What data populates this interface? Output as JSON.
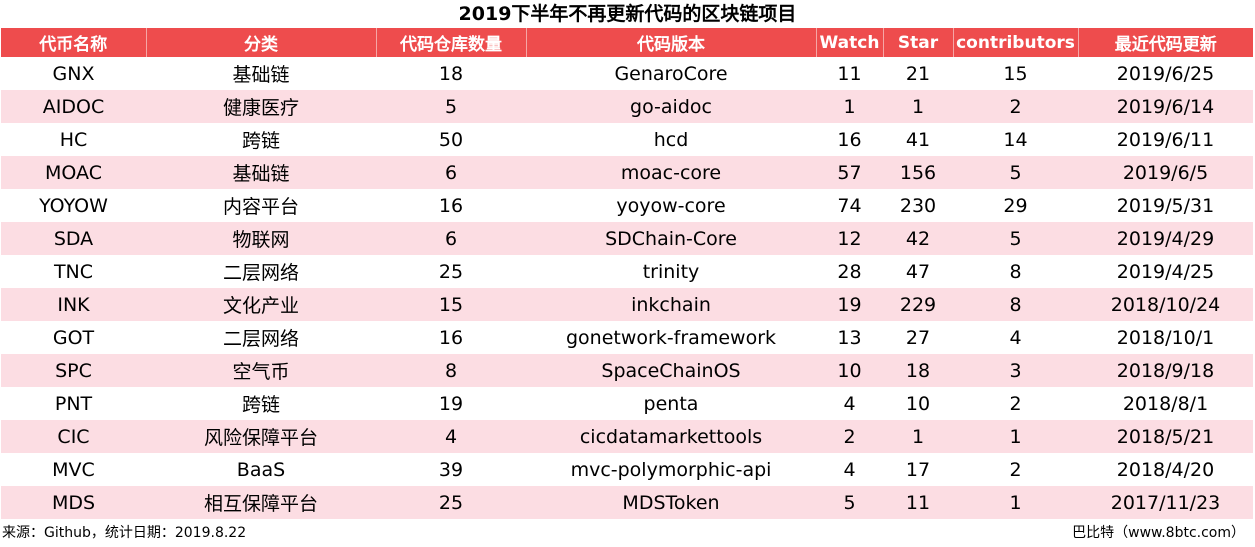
{
  "title": "2019下半年不再更新代码的区块链项目",
  "headers": [
    "代币名称",
    "分类",
    "代码仓库数量",
    "代码版本",
    "Watch",
    "Star",
    "contributors",
    "最近代码更新"
  ],
  "rows": [
    [
      "GNX",
      "基础链",
      "18",
      "GenaroCore",
      "11",
      "21",
      "15",
      "2019/6/25"
    ],
    [
      "AIDOC",
      "健康医疗",
      "5",
      "go-aidoc",
      "1",
      "1",
      "2",
      "2019/6/14"
    ],
    [
      "HC",
      "跨链",
      "50",
      "hcd",
      "16",
      "41",
      "14",
      "2019/6/11"
    ],
    [
      "MOAC",
      "基础链",
      "6",
      "moac-core",
      "57",
      "156",
      "5",
      "2019/6/5"
    ],
    [
      "YOYOW",
      "内容平台",
      "16",
      "yoyow-core",
      "74",
      "230",
      "29",
      "2019/5/31"
    ],
    [
      "SDA",
      "物联网",
      "6",
      "SDChain-Core",
      "12",
      "42",
      "5",
      "2019/4/29"
    ],
    [
      "TNC",
      "二层网络",
      "25",
      "trinity",
      "28",
      "47",
      "8",
      "2019/4/25"
    ],
    [
      "INK",
      "文化产业",
      "15",
      "inkchain",
      "19",
      "229",
      "8",
      "2018/10/24"
    ],
    [
      "GOT",
      "二层网络",
      "16",
      "gonetwork-framework",
      "13",
      "27",
      "4",
      "2018/10/1"
    ],
    [
      "SPC",
      "空气币",
      "8",
      "SpaceChainOS",
      "10",
      "18",
      "3",
      "2018/9/18"
    ],
    [
      "PNT",
      "跨链",
      "19",
      "penta",
      "4",
      "10",
      "2",
      "2018/8/1"
    ],
    [
      "CIC",
      "风险保障平台",
      "4",
      "cicdatamarkettools",
      "2",
      "1",
      "1",
      "2018/5/21"
    ],
    [
      "MVC",
      "BaaS",
      "39",
      "mvc-polymorphic-api",
      "4",
      "17",
      "2",
      "2018/4/20"
    ],
    [
      "MDS",
      "相互保障平台",
      "25",
      "MDSToken",
      "5",
      "11",
      "1",
      "2017/11/23"
    ]
  ],
  "footer": {
    "source": "来源：Github，统计日期：2019.8.22",
    "credit": "巴比特（www.8btc.com）"
  },
  "colors": {
    "header_bg": "#ee4c4d",
    "stripe_bg": "#fcdde3"
  }
}
